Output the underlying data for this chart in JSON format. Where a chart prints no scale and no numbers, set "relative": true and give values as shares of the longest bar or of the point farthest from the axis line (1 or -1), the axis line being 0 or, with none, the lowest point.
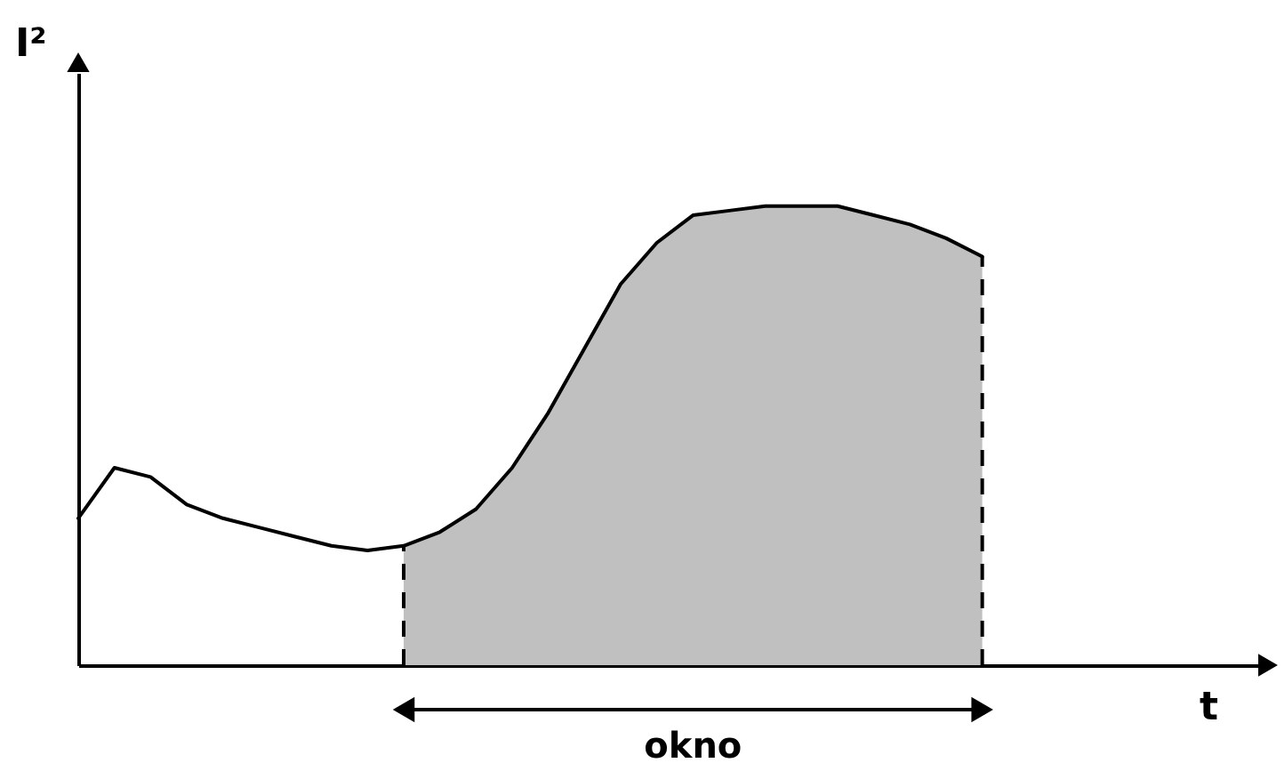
{
  "chart_data": {
    "type": "line",
    "relative": true,
    "xlabel": "t",
    "ylabel": "I²",
    "annotations": [
      "okno"
    ],
    "categories": [
      null,
      null,
      null,
      null,
      null,
      null,
      null,
      null,
      null,
      null,
      null,
      null,
      null,
      null,
      null,
      null,
      null,
      null,
      null,
      null,
      null,
      null,
      null,
      null,
      null,
      null,
      null,
      null,
      null,
      null,
      null,
      null,
      null,
      null
    ],
    "series": [
      {
        "type": "area",
        "color": "#c0c0c0",
        "values": [
          null,
          null,
          null,
          null,
          null,
          null,
          null,
          null,
          null,
          0.26,
          0.29,
          0.34,
          0.43,
          0.55,
          0.69,
          0.83,
          0.92,
          0.98,
          0.99,
          1,
          1,
          1,
          0.98,
          0.96,
          0.93,
          0.89,
          null,
          null,
          null,
          null,
          null,
          null,
          null,
          null
        ]
      },
      {
        "type": "line",
        "color": "#000000",
        "values": [
          0.32,
          0.43,
          0.41,
          0.35,
          0.32,
          0.3,
          0.28,
          0.26,
          0.25,
          0.26,
          0.29,
          0.34,
          0.43,
          0.55,
          0.69,
          0.83,
          0.92,
          0.98,
          0.99,
          1,
          1,
          1,
          0.98,
          0.96,
          0.93,
          0.89,
          null,
          null,
          null,
          null,
          null,
          null,
          null,
          null
        ]
      }
    ]
  }
}
